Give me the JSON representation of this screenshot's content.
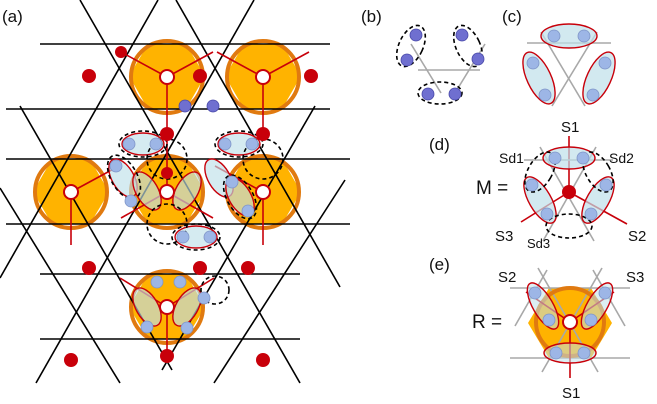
{
  "panels": {
    "a": "(a)",
    "b": "(b)",
    "c": "(c)",
    "d": "(d)",
    "e": "(e)"
  },
  "panel_d": {
    "lhs": "M =",
    "s1": "S1",
    "s2": "S2",
    "s3": "S3",
    "sd1": "Sd1",
    "sd2": "Sd2",
    "sd3": "Sd3"
  },
  "panel_e": {
    "lhs": "R =",
    "s1": "S1",
    "s2": "S2",
    "s3": "S3"
  },
  "colors": {
    "hexagon_fill": "#FFB300",
    "hexagon_ring": "#E07A10",
    "red_site": "#C8000A",
    "blue_site": "#6F6FD0",
    "pale_blue_site": "#9DB6E6",
    "singlet_fill": "#BFE0EA",
    "lattice_line": "#000000",
    "gray_line": "#A8A8A8"
  }
}
